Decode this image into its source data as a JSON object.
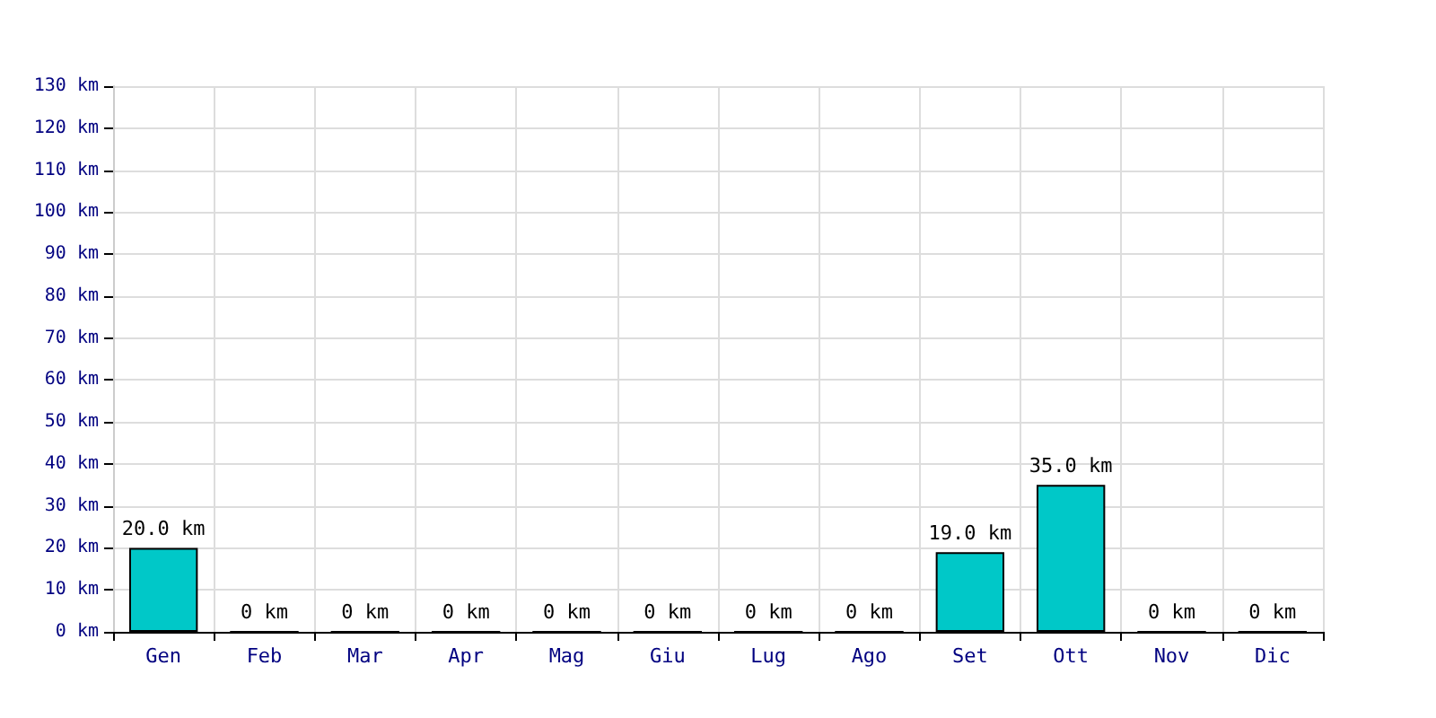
{
  "chart_data": {
    "type": "bar",
    "categories": [
      "Gen",
      "Feb",
      "Mar",
      "Apr",
      "Mag",
      "Giu",
      "Lug",
      "Ago",
      "Set",
      "Ott",
      "Nov",
      "Dic"
    ],
    "series": [
      {
        "color": "#00c8c8",
        "values": [
          20,
          0,
          0,
          0,
          0,
          0,
          0,
          0,
          19,
          35,
          0,
          0
        ],
        "value_labels": [
          "20.0 km",
          "0 km",
          "0 km",
          "0 km",
          "0 km",
          "0 km",
          "0 km",
          "0 km",
          "19.0 km",
          "35.0 km",
          "0 km",
          "0 km"
        ]
      }
    ],
    "ylim": [
      0,
      130
    ],
    "yticks": [
      {
        "value": 0,
        "label": "0 km"
      },
      {
        "value": 10,
        "label": "10 km"
      },
      {
        "value": 20,
        "label": "20 km"
      },
      {
        "value": 30,
        "label": "30 km"
      },
      {
        "value": 40,
        "label": "40 km"
      },
      {
        "value": 50,
        "label": "50 km"
      },
      {
        "value": 60,
        "label": "60 km"
      },
      {
        "value": 70,
        "label": "70 km"
      },
      {
        "value": 80,
        "label": "80 km"
      },
      {
        "value": 90,
        "label": "90 km"
      },
      {
        "value": 100,
        "label": "100 km"
      },
      {
        "value": 110,
        "label": "110 km"
      },
      {
        "value": 120,
        "label": "120 km"
      },
      {
        "value": 130,
        "label": "130 km"
      }
    ],
    "grid": true
  }
}
